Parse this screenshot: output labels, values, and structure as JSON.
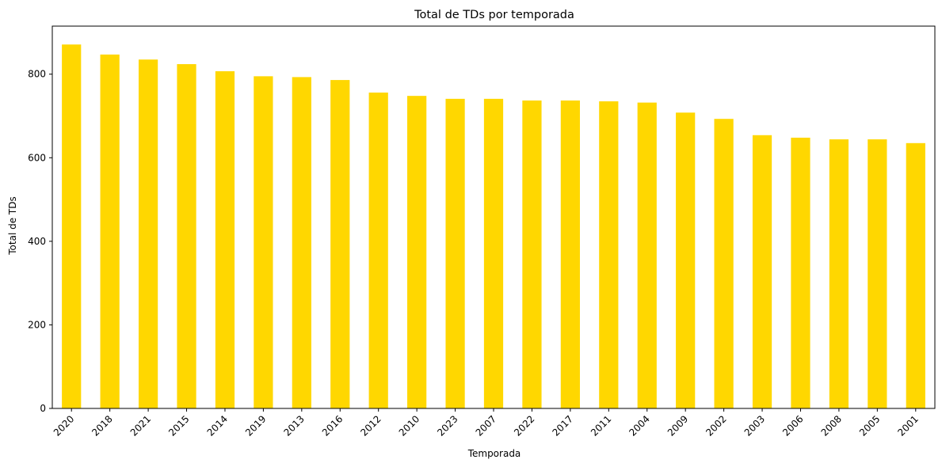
{
  "chart_data": {
    "type": "bar",
    "title": "Total de TDs por temporada",
    "xlabel": "Temporada",
    "ylabel": "Total de TDs",
    "categories": [
      "2020",
      "2018",
      "2021",
      "2015",
      "2014",
      "2019",
      "2013",
      "2016",
      "2012",
      "2010",
      "2023",
      "2007",
      "2022",
      "2017",
      "2011",
      "2004",
      "2009",
      "2002",
      "2003",
      "2006",
      "2008",
      "2005",
      "2001"
    ],
    "values": [
      871,
      847,
      835,
      824,
      807,
      795,
      793,
      786,
      756,
      748,
      741,
      741,
      737,
      737,
      735,
      732,
      708,
      693,
      654,
      648,
      644,
      644,
      635
    ],
    "ylim": [
      0,
      915
    ],
    "yticks": [
      0,
      200,
      400,
      600,
      800
    ],
    "bar_color": "#FFD700",
    "grid": false,
    "legend": "none"
  }
}
